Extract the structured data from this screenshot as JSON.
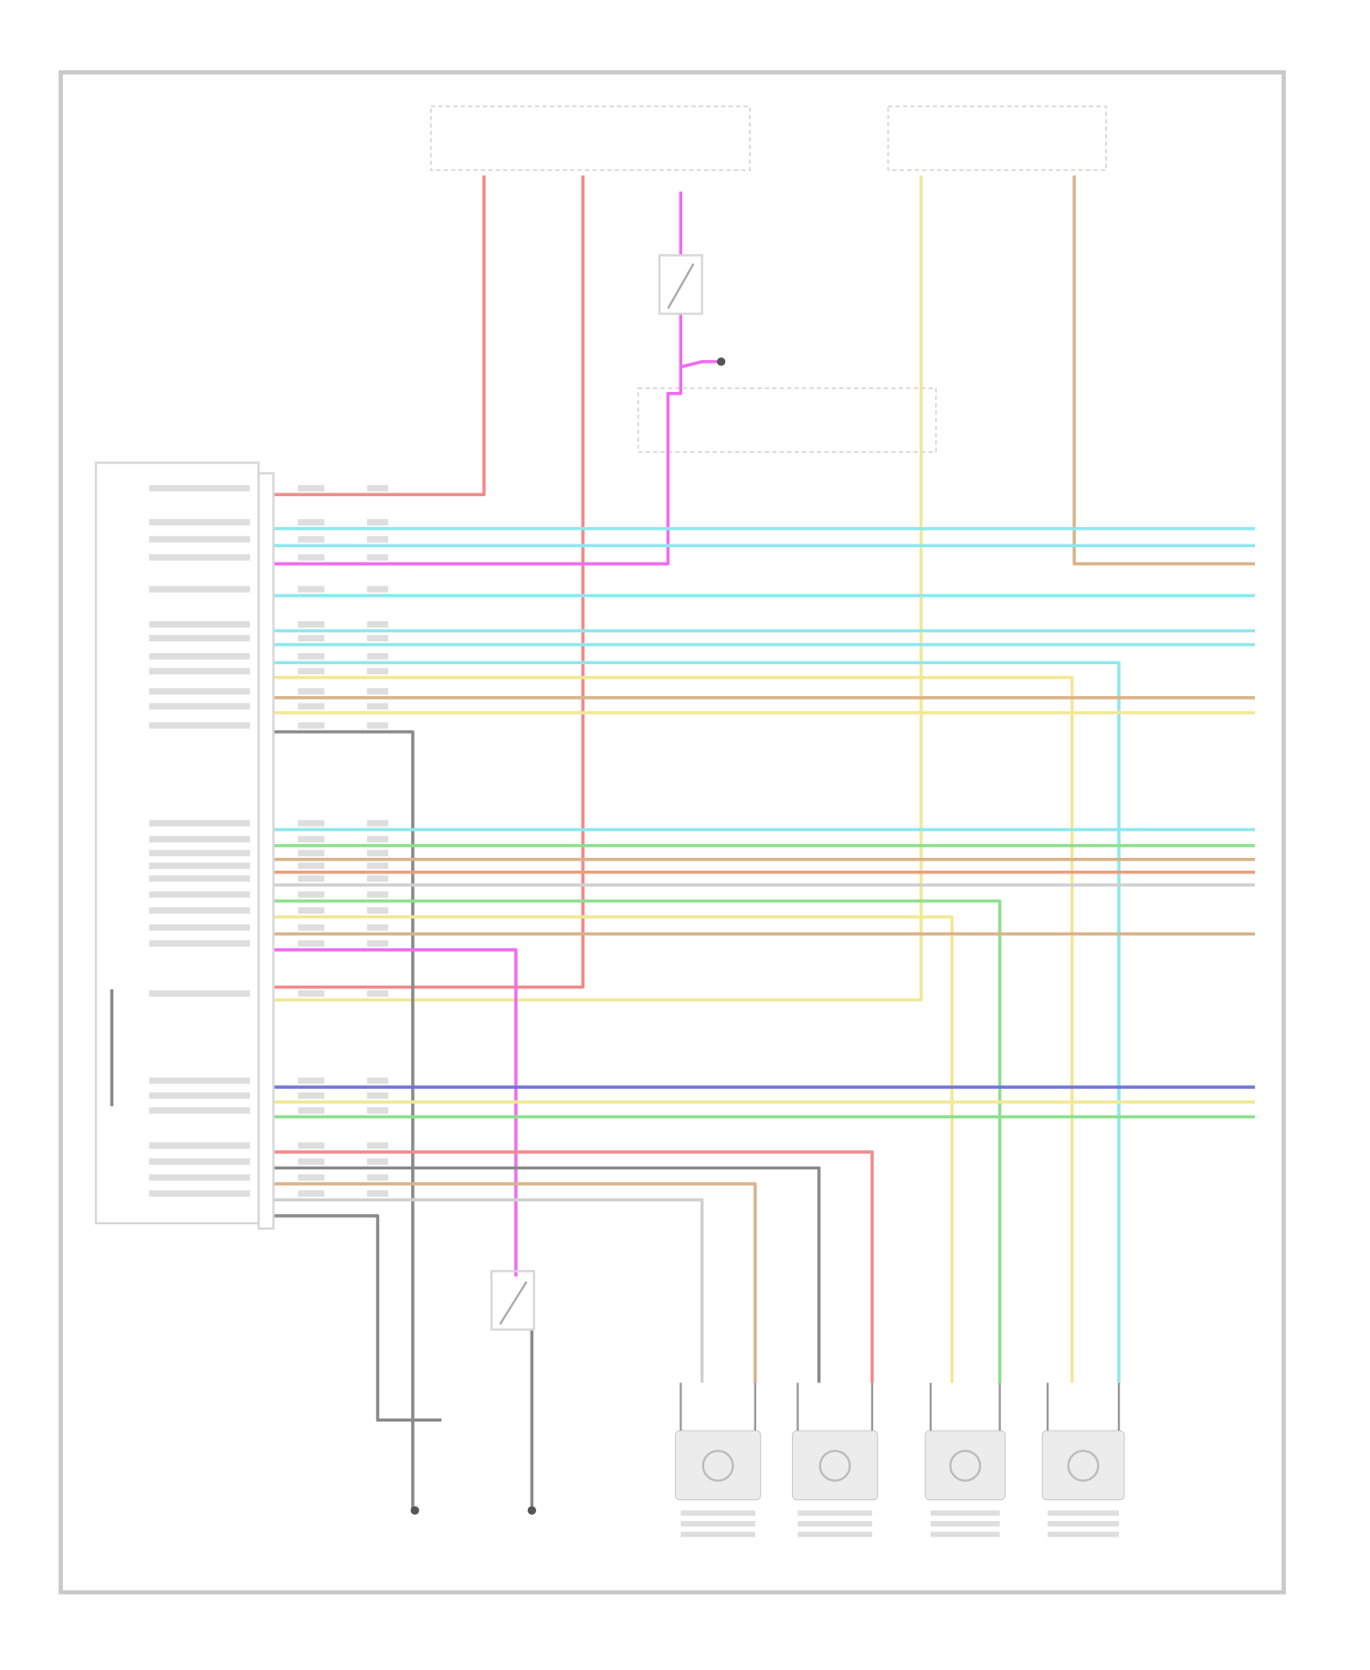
{
  "wire_colors": {
    "red": "#f28a8a",
    "cyan": "#8ee8ee",
    "pink": "#f06cf0",
    "yellow": "#f2e896",
    "tan": "#d9b48a",
    "gray": "#8a8a8a",
    "lightgray": "#d0d0d0",
    "green": "#8ee08e",
    "blue": "#6f74d8",
    "orange": "#e8a080"
  },
  "frame_color": "#c9c9c9"
}
